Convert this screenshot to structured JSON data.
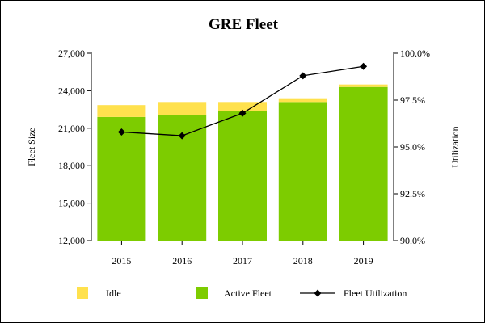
{
  "chart_data": {
    "type": "bar",
    "title": "GRE Fleet",
    "xlabel": "",
    "ylabel": "Fleet Size",
    "y2label": "Utilization",
    "categories": [
      "2015",
      "2016",
      "2017",
      "2018",
      "2019"
    ],
    "ylim": [
      12000,
      27000
    ],
    "y_ticks": [
      12000,
      15000,
      18000,
      21000,
      24000,
      27000
    ],
    "y_tick_labels": [
      "12,000",
      "15,000",
      "18,000",
      "21,000",
      "24,000",
      "27,000"
    ],
    "y2lim": [
      90.0,
      100.0
    ],
    "y2_ticks": [
      90.0,
      92.5,
      95.0,
      97.5,
      100.0
    ],
    "y2_tick_labels": [
      "90.0%",
      "92.5%",
      "95.0%",
      "97.5%",
      "100.0%"
    ],
    "stacked": true,
    "series": [
      {
        "name": "Active Fleet",
        "kind": "bar",
        "color": "#7dcc00",
        "values": [
          21900,
          22050,
          22350,
          23100,
          24300
        ]
      },
      {
        "name": "Idle",
        "kind": "bar",
        "color": "#ffe14d",
        "values": [
          950,
          1050,
          750,
          300,
          200
        ]
      },
      {
        "name": "Fleet Utilization",
        "kind": "line",
        "axis": "right",
        "color": "#000000",
        "values": [
          95.8,
          95.6,
          96.8,
          98.8,
          99.3
        ]
      }
    ],
    "legend": {
      "position": "bottom",
      "entries": [
        "Idle",
        "Active Fleet",
        "Fleet Utilization"
      ]
    }
  }
}
